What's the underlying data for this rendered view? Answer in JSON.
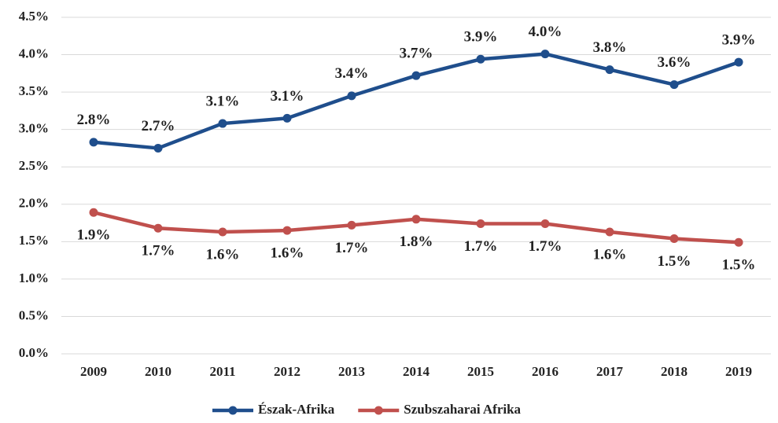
{
  "chart_data": {
    "type": "line",
    "categories": [
      "2009",
      "2010",
      "2011",
      "2012",
      "2013",
      "2014",
      "2015",
      "2016",
      "2017",
      "2018",
      "2019"
    ],
    "series": [
      {
        "name": "Észak-Afrika",
        "color": "#1f4e8c",
        "values": [
          2.83,
          2.75,
          3.08,
          3.15,
          3.45,
          3.72,
          3.94,
          4.01,
          3.8,
          3.6,
          3.9
        ],
        "value_labels": [
          "2.8%",
          "2.7%",
          "3.1%",
          "3.1%",
          "3.4%",
          "3.7%",
          "3.9%",
          "4.0%",
          "3.8%",
          "3.6%",
          "3.9%"
        ]
      },
      {
        "name": "Szubszaharai Afrika",
        "color": "#c0504d",
        "values": [
          1.89,
          1.68,
          1.63,
          1.65,
          1.72,
          1.8,
          1.74,
          1.74,
          1.63,
          1.54,
          1.49
        ],
        "value_labels": [
          "1.9%",
          "1.7%",
          "1.6%",
          "1.6%",
          "1.7%",
          "1.8%",
          "1.7%",
          "1.7%",
          "1.6%",
          "1.5%",
          "1.5%"
        ]
      }
    ],
    "ylim": [
      0,
      4.5
    ],
    "yticks": [
      {
        "value": 0,
        "label": "0.0%"
      },
      {
        "value": 0.5,
        "label": "0.5%"
      },
      {
        "value": 1,
        "label": "1.0%"
      },
      {
        "value": 1.5,
        "label": "1.5%"
      },
      {
        "value": 2,
        "label": "2.0%"
      },
      {
        "value": 2.5,
        "label": "2.5%"
      },
      {
        "value": 3,
        "label": "3.0%"
      },
      {
        "value": 3.5,
        "label": "3.5%"
      },
      {
        "value": 4,
        "label": "4.0%"
      },
      {
        "value": 4.5,
        "label": "4.5%"
      }
    ],
    "grid": true,
    "legend": "bottom"
  }
}
